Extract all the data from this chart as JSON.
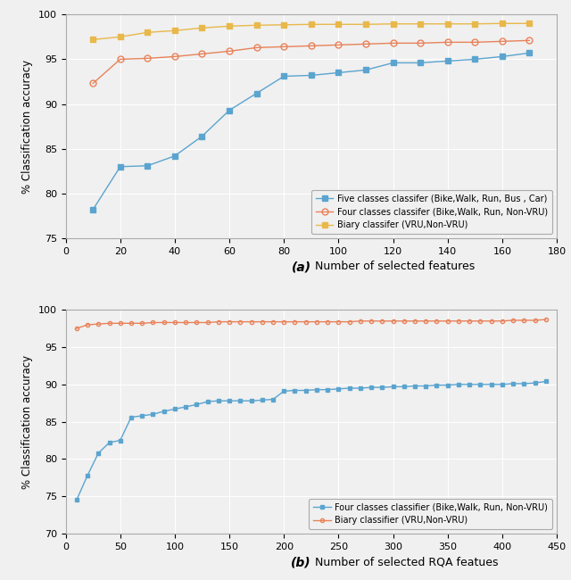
{
  "ax1": {
    "x": [
      10,
      20,
      30,
      40,
      50,
      60,
      70,
      80,
      90,
      100,
      110,
      120,
      130,
      140,
      150,
      160,
      170
    ],
    "blue": [
      78.2,
      83.0,
      83.1,
      84.2,
      86.4,
      89.3,
      91.2,
      93.1,
      93.2,
      93.5,
      93.8,
      94.6,
      94.6,
      94.8,
      95.0,
      95.3,
      95.7
    ],
    "orange": [
      92.3,
      95.0,
      95.1,
      95.3,
      95.6,
      95.9,
      96.3,
      96.4,
      96.5,
      96.6,
      96.7,
      96.8,
      96.8,
      96.9,
      96.9,
      97.0,
      97.1
    ],
    "yellow": [
      97.2,
      97.5,
      98.0,
      98.2,
      98.5,
      98.7,
      98.8,
      98.85,
      98.9,
      98.9,
      98.9,
      98.95,
      98.95,
      98.95,
      98.95,
      99.0,
      99.0
    ],
    "xlim": [
      0,
      180
    ],
    "ylim": [
      75,
      100
    ],
    "yticks": [
      75,
      80,
      85,
      90,
      95,
      100
    ],
    "xticks": [
      0,
      20,
      40,
      60,
      80,
      100,
      120,
      140,
      160,
      180
    ],
    "xlabel": " Number of selected features",
    "ylabel": "% Classification accuracy",
    "label_blue": "Five classes classifer (Bike,Walk, Run, Bus , Car)",
    "label_orange": "Four classes classifer (Bike,Walk, Run, Non-VRU)",
    "label_yellow": "Biary classifer (VRU,Non-VRU)",
    "subplot_label": "(a)"
  },
  "ax2": {
    "x": [
      10,
      20,
      30,
      40,
      50,
      60,
      70,
      80,
      90,
      100,
      110,
      120,
      130,
      140,
      150,
      160,
      170,
      180,
      190,
      200,
      210,
      220,
      230,
      240,
      250,
      260,
      270,
      280,
      290,
      300,
      310,
      320,
      330,
      340,
      350,
      360,
      370,
      380,
      390,
      400,
      410,
      420,
      430,
      440
    ],
    "blue": [
      74.5,
      77.8,
      80.8,
      82.2,
      82.5,
      85.6,
      85.8,
      86.0,
      86.4,
      86.7,
      87.0,
      87.3,
      87.7,
      87.8,
      87.8,
      87.8,
      87.8,
      87.9,
      88.0,
      89.1,
      89.2,
      89.2,
      89.3,
      89.3,
      89.4,
      89.5,
      89.5,
      89.6,
      89.6,
      89.7,
      89.7,
      89.8,
      89.8,
      89.9,
      89.9,
      90.0,
      90.0,
      90.0,
      90.0,
      90.0,
      90.1,
      90.1,
      90.2,
      90.4
    ],
    "orange": [
      97.5,
      98.0,
      98.1,
      98.2,
      98.2,
      98.2,
      98.2,
      98.3,
      98.3,
      98.3,
      98.3,
      98.3,
      98.3,
      98.4,
      98.4,
      98.4,
      98.4,
      98.4,
      98.4,
      98.4,
      98.4,
      98.4,
      98.4,
      98.4,
      98.4,
      98.4,
      98.5,
      98.5,
      98.5,
      98.5,
      98.5,
      98.5,
      98.5,
      98.5,
      98.5,
      98.5,
      98.5,
      98.5,
      98.5,
      98.5,
      98.6,
      98.6,
      98.6,
      98.7
    ],
    "xlim": [
      0,
      450
    ],
    "ylim": [
      70,
      100
    ],
    "yticks": [
      70,
      75,
      80,
      85,
      90,
      95,
      100
    ],
    "xticks": [
      0,
      50,
      100,
      150,
      200,
      250,
      300,
      350,
      400,
      450
    ],
    "xlabel": " Number of selected RQA featues",
    "ylabel": "% Classification accuracy",
    "label_blue": "Four classes classifier (Bike,Walk, Run, Non-VRU)",
    "label_orange": "Biary classifier (VRU,Non-VRU)",
    "subplot_label": "(b)"
  },
  "color_blue": "#5BA4CF",
  "color_orange": "#E8825A",
  "color_yellow": "#E8B84B",
  "background": "#f0f0f0",
  "grid_color": "#ffffff",
  "legend_edgecolor": "#aaaaaa"
}
